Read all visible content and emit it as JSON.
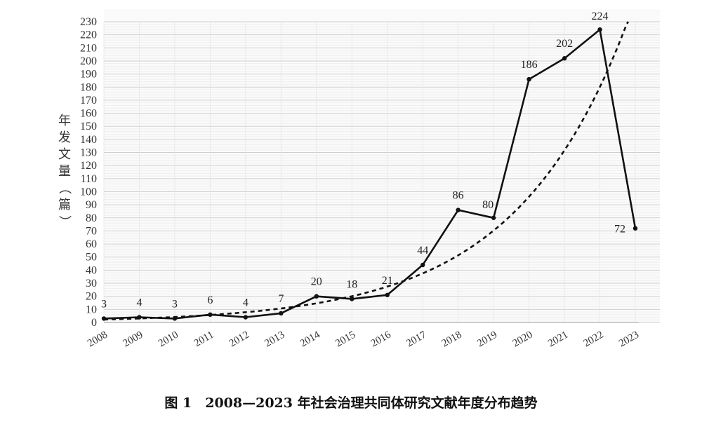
{
  "caption": "图 1　2008—2023 年社会治理共同体研究文献年度分布趋势",
  "chart_data": {
    "type": "line",
    "title": "",
    "xlabel": "",
    "ylabel": "年发文量（篇）",
    "categories": [
      "2008",
      "2009",
      "2010",
      "2011",
      "2012",
      "2013",
      "2014",
      "2015",
      "2016",
      "2017",
      "2018",
      "2019",
      "2020",
      "2021",
      "2022",
      "2023"
    ],
    "series": [
      {
        "values": [
          3,
          4,
          3,
          6,
          4,
          7,
          20,
          18,
          21,
          44,
          86,
          80,
          186,
          202,
          224,
          72
        ]
      }
    ],
    "trendline": {
      "style": "dashed",
      "kind": "exponential"
    },
    "data_labels": [
      "3",
      "4",
      "3",
      "6",
      "4",
      "7",
      "20",
      "18",
      "21",
      "44",
      "86",
      "80",
      "186",
      "202",
      "224",
      "72"
    ],
    "ylim": [
      0,
      230
    ],
    "yticks": [
      0,
      10,
      20,
      30,
      40,
      50,
      60,
      70,
      80,
      90,
      100,
      110,
      120,
      130,
      140,
      150,
      160,
      170,
      180,
      190,
      200,
      210,
      220,
      230
    ],
    "grid": true,
    "legend": "none"
  }
}
